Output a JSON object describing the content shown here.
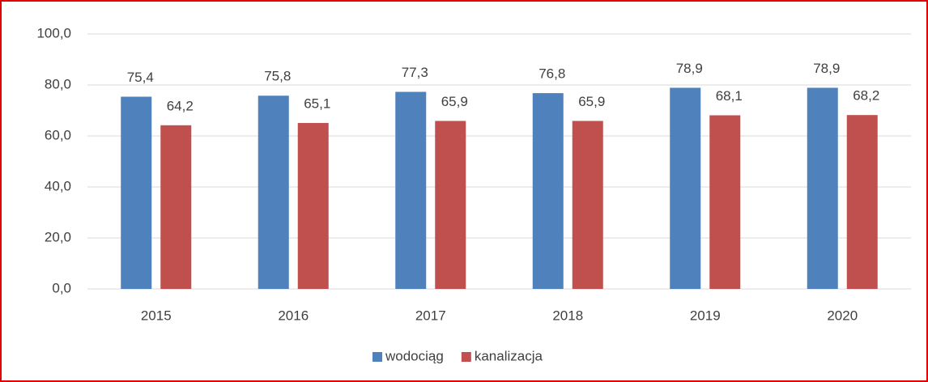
{
  "chart_data": {
    "type": "bar",
    "categories": [
      "2015",
      "2016",
      "2017",
      "2018",
      "2019",
      "2020"
    ],
    "series": [
      {
        "name": "wodociąg",
        "color": "#4f81bd",
        "values": [
          75.4,
          75.8,
          77.3,
          76.8,
          78.9,
          78.9
        ],
        "value_labels": [
          "75,4",
          "75,8",
          "77,3",
          "76,8",
          "78,9",
          "78,9"
        ]
      },
      {
        "name": "kanalizacja",
        "color": "#c0504d",
        "values": [
          64.2,
          65.1,
          65.9,
          65.9,
          68.1,
          68.2
        ],
        "value_labels": [
          "64,2",
          "65,1",
          "65,9",
          "65,9",
          "68,1",
          "68,2"
        ]
      }
    ],
    "ylim": [
      0,
      100
    ],
    "yticks": [
      {
        "value": 0,
        "label": "0,0"
      },
      {
        "value": 20,
        "label": "20,0"
      },
      {
        "value": 40,
        "label": "40,0"
      },
      {
        "value": 60,
        "label": "60,0"
      },
      {
        "value": 80,
        "label": "80,0"
      },
      {
        "value": 100,
        "label": "100,0"
      }
    ],
    "grid": true,
    "legend": "bottom"
  }
}
